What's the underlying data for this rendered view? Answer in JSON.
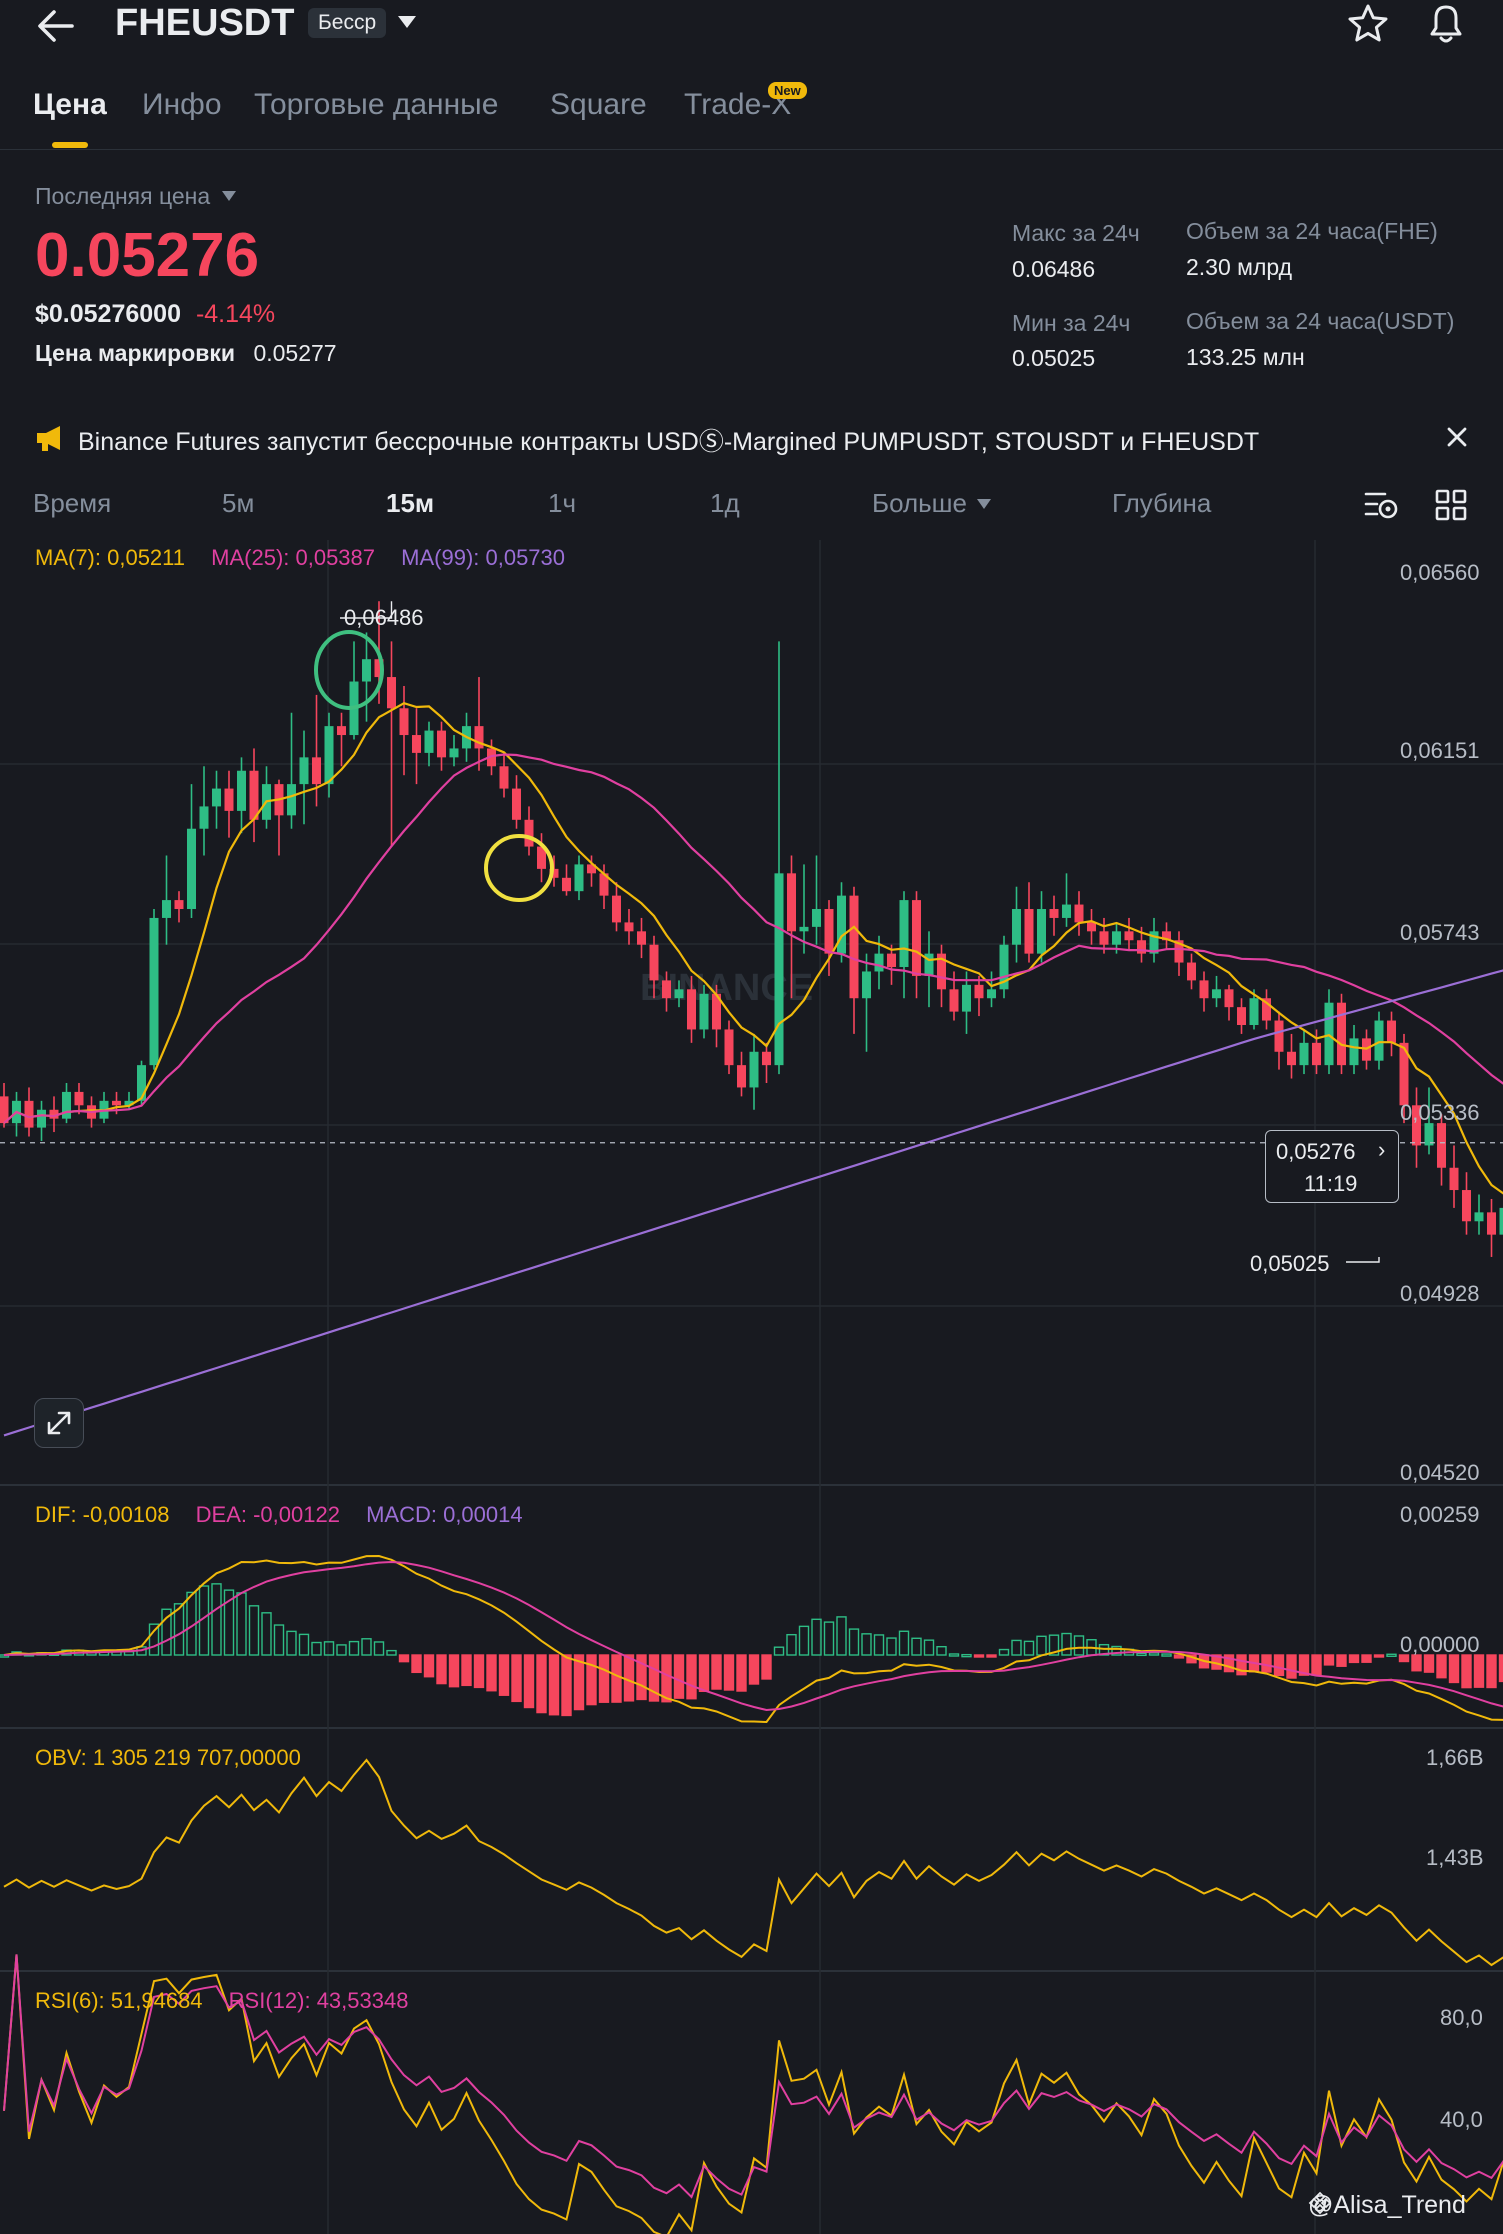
{
  "header": {
    "symbol": "FHEUSDT",
    "badge": "Бесср"
  },
  "tabs": [
    {
      "label": "Цена",
      "active": true
    },
    {
      "label": "Инфо"
    },
    {
      "label": "Торговые данные"
    },
    {
      "label": "Square"
    },
    {
      "label": "Trade-X",
      "badge": "New"
    }
  ],
  "price": {
    "label": "Последняя цена",
    "last": "0.05276",
    "usd": "$0.05276000",
    "change": "-4.14%",
    "mark_label": "Цена маркировки",
    "mark": "0.05277"
  },
  "stats": {
    "high_label": "Макс за 24ч",
    "high": "0.06486",
    "low_label": "Мин за 24ч",
    "low": "0.05025",
    "vol_fhe_label": "Объем за 24 часа(FHE)",
    "vol_fhe": "2.30 млрд",
    "vol_usdt_label": "Объем за 24 часа(USDT)",
    "vol_usdt": "133.25 млн"
  },
  "announcement": "Binance Futures запустит бессрочные контракты USDⓈ-Margined PUMPUSDT, STOUSDT и FHEUSDT",
  "intervals": [
    "Время",
    "5м",
    "15м",
    "1ч",
    "1д",
    "Больше",
    "Глубина"
  ],
  "indicators": {
    "ma": {
      "ma7": "MA(7): 0,05211",
      "ma25": "MA(25): 0,05387",
      "ma99": "MA(99): 0,05730"
    },
    "macd": {
      "dif": "DIF: -0,00108",
      "dea": "DEA: -0,00122",
      "macd": "MACD: 0,00014"
    },
    "obv": "OBV: 1 305 219 707,00000",
    "rsi": {
      "rsi6": "RSI(6): 51,94684",
      "rsi12": "RSI(12): 43,53348"
    }
  },
  "watermark": "@Alisa_Trend",
  "colors": {
    "up": "#2ebd85",
    "down": "#f6465d",
    "ma7": "#f0b90b",
    "ma25": "#e040a0",
    "ma99": "#9b6fd6",
    "accent": "#f0b90b"
  },
  "chart_data": [
    {
      "type": "candlestick",
      "title": "",
      "y_ticks": [
        "0,06560",
        "0,06151",
        "0,05743",
        "0,05336",
        "0,04928",
        "0,04520"
      ],
      "ylim": [
        0.0452,
        0.0656
      ],
      "annotations": {
        "high": "0,06486",
        "low": "0,05025",
        "current": "0,05276",
        "countdown": "11:19"
      },
      "candles": [
        [
          0.0538,
          0.0532,
          0.0541,
          0.0531
        ],
        [
          0.0532,
          0.0537,
          0.0539,
          0.0529
        ],
        [
          0.0537,
          0.0531,
          0.054,
          0.0529
        ],
        [
          0.0531,
          0.0535,
          0.0537,
          0.0528
        ],
        [
          0.0535,
          0.0533,
          0.0538,
          0.053
        ],
        [
          0.0533,
          0.0539,
          0.0541,
          0.0532
        ],
        [
          0.0539,
          0.0536,
          0.0541,
          0.0534
        ],
        [
          0.0536,
          0.0533,
          0.0538,
          0.0531
        ],
        [
          0.0533,
          0.0537,
          0.0539,
          0.0532
        ],
        [
          0.0537,
          0.0536,
          0.0539,
          0.0534
        ],
        [
          0.0536,
          0.0537,
          0.0539,
          0.0535
        ],
        [
          0.0537,
          0.0545,
          0.0546,
          0.0536
        ],
        [
          0.0545,
          0.0578,
          0.058,
          0.0544
        ],
        [
          0.0578,
          0.0582,
          0.0592,
          0.0572
        ],
        [
          0.0582,
          0.058,
          0.0584,
          0.0577
        ],
        [
          0.058,
          0.0598,
          0.0608,
          0.0578
        ],
        [
          0.0598,
          0.0603,
          0.0612,
          0.0592
        ],
        [
          0.0603,
          0.0607,
          0.0611,
          0.0598
        ],
        [
          0.0607,
          0.0602,
          0.0611,
          0.0596
        ],
        [
          0.0602,
          0.0611,
          0.0614,
          0.0597
        ],
        [
          0.0611,
          0.06,
          0.0616,
          0.0595
        ],
        [
          0.06,
          0.0608,
          0.0612,
          0.0598
        ],
        [
          0.0608,
          0.0601,
          0.0609,
          0.0592
        ],
        [
          0.0601,
          0.0608,
          0.0624,
          0.0598
        ],
        [
          0.0608,
          0.0614,
          0.062,
          0.0599
        ],
        [
          0.0614,
          0.0608,
          0.0628,
          0.0603
        ],
        [
          0.0608,
          0.0621,
          0.0624,
          0.0605
        ],
        [
          0.0621,
          0.0619,
          0.0624,
          0.0612
        ],
        [
          0.0619,
          0.0631,
          0.064,
          0.0618
        ],
        [
          0.0631,
          0.0636,
          0.0642,
          0.0622
        ],
        [
          0.0636,
          0.0632,
          0.0649,
          0.0626
        ],
        [
          0.0632,
          0.0625,
          0.064,
          0.0594
        ],
        [
          0.0625,
          0.0619,
          0.063,
          0.061
        ],
        [
          0.0619,
          0.0615,
          0.0625,
          0.0608
        ],
        [
          0.0615,
          0.062,
          0.0622,
          0.0612
        ],
        [
          0.062,
          0.0614,
          0.0622,
          0.0611
        ],
        [
          0.0614,
          0.0616,
          0.0619,
          0.0612
        ],
        [
          0.0616,
          0.0621,
          0.0624,
          0.0613
        ],
        [
          0.0621,
          0.0616,
          0.0632,
          0.0611
        ],
        [
          0.0616,
          0.0612,
          0.0618,
          0.061
        ],
        [
          0.0612,
          0.0607,
          0.0615,
          0.0605
        ],
        [
          0.0607,
          0.06,
          0.061,
          0.0598
        ],
        [
          0.06,
          0.0594,
          0.0603,
          0.0592
        ],
        [
          0.0594,
          0.0589,
          0.0597,
          0.0586
        ],
        [
          0.0589,
          0.0587,
          0.0592,
          0.0585
        ],
        [
          0.0587,
          0.0584,
          0.059,
          0.0583
        ],
        [
          0.0584,
          0.059,
          0.0592,
          0.0582
        ],
        [
          0.059,
          0.0588,
          0.0592,
          0.0585
        ],
        [
          0.0588,
          0.0583,
          0.059,
          0.058
        ],
        [
          0.0583,
          0.0577,
          0.0586,
          0.0575
        ],
        [
          0.0577,
          0.0575,
          0.058,
          0.0572
        ],
        [
          0.0575,
          0.0572,
          0.0578,
          0.0569
        ],
        [
          0.0572,
          0.0564,
          0.0574,
          0.056
        ],
        [
          0.0564,
          0.056,
          0.0566,
          0.0557
        ],
        [
          0.056,
          0.0562,
          0.0564,
          0.0558
        ],
        [
          0.0562,
          0.0553,
          0.0565,
          0.055
        ],
        [
          0.0553,
          0.0561,
          0.0563,
          0.0551
        ],
        [
          0.0561,
          0.0553,
          0.0563,
          0.0549
        ],
        [
          0.0553,
          0.0545,
          0.0555,
          0.0543
        ],
        [
          0.0545,
          0.054,
          0.0548,
          0.0538
        ],
        [
          0.054,
          0.0548,
          0.0552,
          0.0535
        ],
        [
          0.0548,
          0.0545,
          0.055,
          0.0541
        ],
        [
          0.0545,
          0.0588,
          0.064,
          0.0543
        ],
        [
          0.0588,
          0.0575,
          0.0592,
          0.056
        ],
        [
          0.0575,
          0.0576,
          0.059,
          0.057
        ],
        [
          0.0576,
          0.058,
          0.0592,
          0.0572
        ],
        [
          0.058,
          0.057,
          0.0582,
          0.0565
        ],
        [
          0.057,
          0.0583,
          0.0586,
          0.0568
        ],
        [
          0.0583,
          0.056,
          0.0585,
          0.0552
        ],
        [
          0.056,
          0.0566,
          0.057,
          0.0548
        ],
        [
          0.0566,
          0.057,
          0.0574,
          0.0562
        ],
        [
          0.057,
          0.0567,
          0.0572,
          0.0563
        ],
        [
          0.0567,
          0.0582,
          0.0584,
          0.056
        ],
        [
          0.0582,
          0.0565,
          0.0584,
          0.056
        ],
        [
          0.0565,
          0.057,
          0.0575,
          0.0558
        ],
        [
          0.057,
          0.0562,
          0.0572,
          0.0558
        ],
        [
          0.0562,
          0.0557,
          0.0566,
          0.0555
        ],
        [
          0.0557,
          0.0563,
          0.0566,
          0.0552
        ],
        [
          0.0563,
          0.056,
          0.0565,
          0.0556
        ],
        [
          0.056,
          0.0562,
          0.0566,
          0.0558
        ],
        [
          0.0562,
          0.0572,
          0.0574,
          0.056
        ],
        [
          0.0572,
          0.058,
          0.0585,
          0.0568
        ],
        [
          0.058,
          0.057,
          0.0586,
          0.0568
        ],
        [
          0.057,
          0.058,
          0.0584,
          0.0568
        ],
        [
          0.058,
          0.0578,
          0.0583,
          0.0574
        ],
        [
          0.0578,
          0.0581,
          0.0588,
          0.0576
        ],
        [
          0.0581,
          0.0577,
          0.0584,
          0.0574
        ],
        [
          0.0577,
          0.0575,
          0.058,
          0.0572
        ],
        [
          0.0575,
          0.0572,
          0.0578,
          0.057
        ],
        [
          0.0572,
          0.0575,
          0.0577,
          0.057
        ],
        [
          0.0575,
          0.0573,
          0.0578,
          0.0571
        ],
        [
          0.0573,
          0.057,
          0.0576,
          0.0568
        ],
        [
          0.057,
          0.0575,
          0.0578,
          0.0568
        ],
        [
          0.0575,
          0.0573,
          0.0577,
          0.0571
        ],
        [
          0.0573,
          0.0568,
          0.0575,
          0.0565
        ],
        [
          0.0568,
          0.0564,
          0.057,
          0.0562
        ],
        [
          0.0564,
          0.056,
          0.0566,
          0.0557
        ],
        [
          0.056,
          0.0562,
          0.0565,
          0.0558
        ],
        [
          0.0562,
          0.0558,
          0.0563,
          0.0555
        ],
        [
          0.0558,
          0.0554,
          0.056,
          0.0552
        ],
        [
          0.0554,
          0.056,
          0.0562,
          0.0553
        ],
        [
          0.056,
          0.0555,
          0.0562,
          0.0553
        ],
        [
          0.0555,
          0.0548,
          0.0557,
          0.0544
        ],
        [
          0.0548,
          0.0545,
          0.0552,
          0.0542
        ],
        [
          0.0545,
          0.055,
          0.0553,
          0.0543
        ],
        [
          0.055,
          0.0545,
          0.0553,
          0.0543
        ],
        [
          0.0545,
          0.0559,
          0.0562,
          0.0543
        ],
        [
          0.0559,
          0.0545,
          0.0561,
          0.0543
        ],
        [
          0.0545,
          0.0551,
          0.0554,
          0.0543
        ],
        [
          0.0551,
          0.0546,
          0.0553,
          0.0544
        ],
        [
          0.0546,
          0.0555,
          0.0557,
          0.0544
        ],
        [
          0.0555,
          0.055,
          0.0557,
          0.0547
        ],
        [
          0.055,
          0.0536,
          0.0552,
          0.0532
        ],
        [
          0.0536,
          0.0527,
          0.054,
          0.0522
        ],
        [
          0.0527,
          0.0532,
          0.054,
          0.0525
        ],
        [
          0.0532,
          0.0522,
          0.0534,
          0.0518
        ],
        [
          0.0522,
          0.0517,
          0.0527,
          0.0513
        ],
        [
          0.0517,
          0.051,
          0.0521,
          0.0507
        ],
        [
          0.051,
          0.0512,
          0.0516,
          0.0507
        ],
        [
          0.0512,
          0.0507,
          0.0515,
          0.0502
        ],
        [
          0.0507,
          0.0513,
          0.0515,
          0.0504
        ],
        [
          0.0513,
          0.0516,
          0.0519,
          0.051
        ],
        [
          0.0516,
          0.0523,
          0.0526,
          0.0512
        ],
        [
          0.0523,
          0.0529,
          0.0533,
          0.0521
        ],
        [
          0.0529,
          0.0532,
          0.0534,
          0.0525
        ],
        [
          0.0532,
          0.0528,
          0.0534,
          0.0526
        ]
      ]
    },
    {
      "type": "bar",
      "title": "",
      "y_ticks": [
        "0,00259",
        "0,00000"
      ]
    },
    {
      "type": "line",
      "title": "",
      "y_ticks": [
        "1,66B",
        "1,43B"
      ]
    },
    {
      "type": "line",
      "title": "",
      "y_ticks": [
        "80,0",
        "40,0"
      ]
    }
  ]
}
